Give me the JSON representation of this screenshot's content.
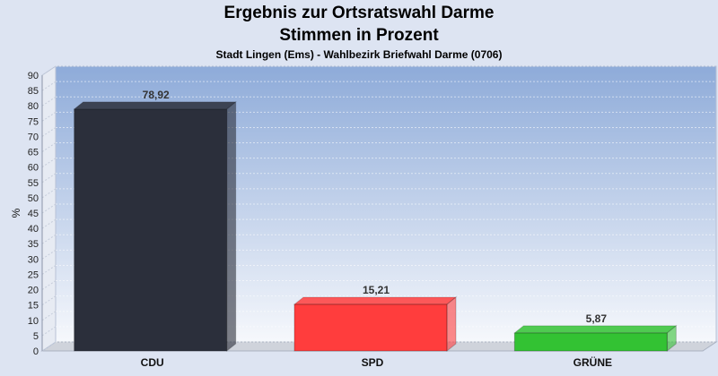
{
  "header": {
    "title": "Ergebnis zur Ortsratswahl Darme",
    "subtitle": "Stimmen in Prozent",
    "caption": "Stadt Lingen (Ems) - Wahlbezirk Briefwahl Darme (0706)"
  },
  "chart_data": {
    "type": "bar",
    "title": "Ergebnis zur Ortsratswahl Darme",
    "subtitle": "Stimmen in Prozent",
    "xlabel": "",
    "ylabel": "%",
    "ylim": [
      0,
      90
    ],
    "ytick_step": 5,
    "categories": [
      "CDU",
      "SPD",
      "GRÜNE"
    ],
    "values": [
      78.92,
      15.21,
      5.87
    ],
    "value_labels": [
      "78,92",
      "15,21",
      "5,87"
    ],
    "colors": [
      "#2b2f3b",
      "#ff3d3d",
      "#33c233"
    ],
    "grid": true,
    "legend": "none"
  }
}
